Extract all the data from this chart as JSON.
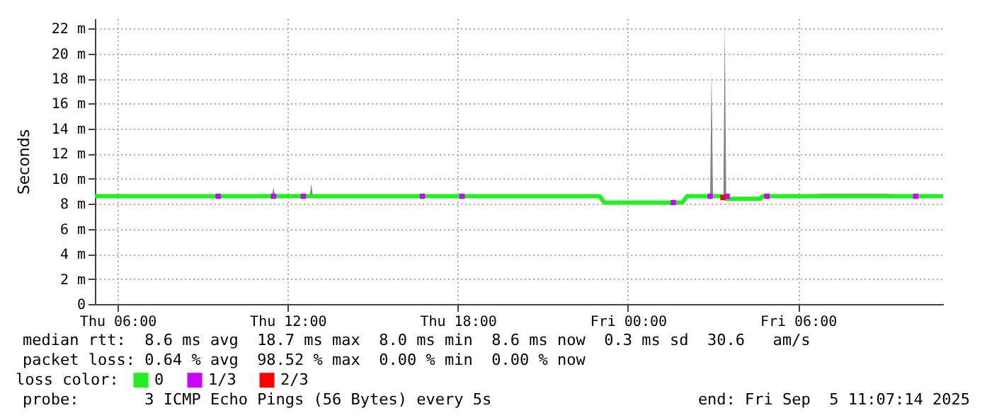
{
  "chart_data": {
    "type": "line",
    "ylabel": "Seconds",
    "legend_title": "loss color:",
    "legend": "bottom",
    "grid": true,
    "xlim": [
      "2025-09-04T05:12",
      "2025-09-05T11:07"
    ],
    "xticks": [
      {
        "value": "2025-09-04T06:00",
        "label": "Thu 06:00"
      },
      {
        "value": "2025-09-04T12:00",
        "label": "Thu 12:00"
      },
      {
        "value": "2025-09-04T18:00",
        "label": "Thu 18:00"
      },
      {
        "value": "2025-09-05T00:00",
        "label": "Fri 00:00"
      },
      {
        "value": "2025-09-05T06:00",
        "label": "Fri 06:00"
      }
    ],
    "ylim": [
      0,
      22.8
    ],
    "yticks": [
      0,
      {
        "value": 2,
        "label": "2 m"
      },
      {
        "value": 4,
        "label": "4 m"
      },
      {
        "value": 6,
        "label": "6 m"
      },
      {
        "value": 8,
        "label": "8 m"
      },
      {
        "value": 10,
        "label": "10 m"
      },
      {
        "value": 12,
        "label": "12 m"
      },
      {
        "value": 14,
        "label": "14 m"
      },
      {
        "value": 16,
        "label": "16 m"
      },
      {
        "value": 18,
        "label": "18 m"
      },
      {
        "value": 20,
        "label": "20 m"
      },
      {
        "value": 22,
        "label": "22 m"
      }
    ],
    "series": [
      {
        "name": "0",
        "color": "#22ee22",
        "x": [
          "2025-09-04T05:12",
          "2025-09-04T06:00",
          "2025-09-04T07:00",
          "2025-09-04T08:00",
          "2025-09-04T09:00",
          "2025-09-04T10:00",
          "2025-09-04T11:00",
          "2025-09-04T11:27",
          "2025-09-04T11:30",
          "2025-09-04T11:33",
          "2025-09-04T12:00",
          "2025-09-04T12:47",
          "2025-09-04T12:50",
          "2025-09-04T12:53",
          "2025-09-04T14:00",
          "2025-09-04T15:00",
          "2025-09-04T16:00",
          "2025-09-04T17:00",
          "2025-09-04T18:00",
          "2025-09-04T19:00",
          "2025-09-04T20:00",
          "2025-09-04T21:00",
          "2025-09-04T22:00",
          "2025-09-04T23:00",
          "2025-09-04T23:10",
          "2025-09-05T00:00",
          "2025-09-05T01:00",
          "2025-09-05T01:55",
          "2025-09-05T02:05",
          "2025-09-05T02:54",
          "2025-09-05T02:57",
          "2025-09-05T03:00",
          "2025-09-05T03:22",
          "2025-09-05T03:25",
          "2025-09-05T03:28",
          "2025-09-05T04:00",
          "2025-09-05T04:40",
          "2025-09-05T04:45",
          "2025-09-05T05:00",
          "2025-09-05T06:00",
          "2025-09-05T07:00",
          "2025-09-05T08:00",
          "2025-09-05T09:00",
          "2025-09-05T10:00",
          "2025-09-05T11:00",
          "2025-09-05T11:07"
        ],
        "values": [
          8.6,
          8.6,
          8.6,
          8.6,
          8.6,
          8.6,
          8.6,
          8.6,
          8.6,
          8.6,
          8.6,
          8.6,
          8.6,
          8.6,
          8.6,
          8.6,
          8.6,
          8.6,
          8.6,
          8.6,
          8.6,
          8.6,
          8.6,
          8.6,
          8.1,
          8.1,
          8.1,
          8.1,
          8.6,
          8.6,
          8.6,
          8.6,
          8.6,
          8.6,
          8.4,
          8.4,
          8.4,
          8.6,
          8.6,
          8.6,
          8.6,
          8.6,
          8.6,
          8.6,
          8.6,
          8.6
        ],
        "lower": [
          8.6,
          8.6,
          8.6,
          8.6,
          8.6,
          8.6,
          8.6,
          8.6,
          8.6,
          8.6,
          8.6,
          8.6,
          8.6,
          8.6,
          8.6,
          8.6,
          8.6,
          8.6,
          8.6,
          8.6,
          8.6,
          8.6,
          8.6,
          8.6,
          8.1,
          8.1,
          8.1,
          8.1,
          8.6,
          8.6,
          8.6,
          8.6,
          8.6,
          8.6,
          8.4,
          8.4,
          8.4,
          8.6,
          8.6,
          8.6,
          8.6,
          8.6,
          8.6,
          8.6,
          8.6,
          8.6
        ],
        "upper": [
          8.7,
          8.7,
          8.7,
          8.7,
          8.7,
          8.7,
          8.7,
          8.7,
          9.3,
          8.7,
          8.7,
          8.7,
          9.6,
          8.7,
          8.7,
          8.7,
          8.7,
          8.7,
          8.7,
          8.7,
          8.7,
          8.7,
          8.7,
          8.7,
          8.2,
          8.2,
          8.2,
          8.2,
          8.7,
          8.7,
          18.7,
          8.7,
          8.7,
          22.5,
          8.5,
          8.5,
          8.5,
          8.7,
          8.7,
          8.7,
          8.8,
          8.8,
          8.8,
          8.7,
          8.7,
          8.7
        ]
      },
      {
        "name": "1/3",
        "type": "scatter",
        "color": "#cc00ff",
        "x": [
          "2025-09-04T09:33",
          "2025-09-04T11:30",
          "2025-09-04T12:33",
          "2025-09-04T16:45",
          "2025-09-04T18:09",
          "2025-09-05T01:36",
          "2025-09-05T02:54",
          "2025-09-05T03:30",
          "2025-09-05T04:54",
          "2025-09-05T10:09"
        ],
        "values": [
          8.6,
          8.6,
          8.6,
          8.6,
          8.6,
          8.1,
          8.6,
          8.6,
          8.6,
          8.6
        ]
      },
      {
        "name": "2/3",
        "type": "scatter",
        "color": "#ff0000",
        "x": [
          "2025-09-05T03:21"
        ],
        "values": [
          8.5
        ]
      }
    ],
    "annotations": [
      "median rtt:  8.6 ms avg  18.7 ms max  8.0 ms min  8.6 ms now  0.3 ms sd  30.6   am/s",
      "packet loss: 0.64 % avg  98.52 % max  0.00 % min  0.00 % now",
      "probe:       3 ICMP Echo Pings (56 Bytes) every 5s",
      "end: Fri Sep  5 11:07:14 2025"
    ]
  }
}
